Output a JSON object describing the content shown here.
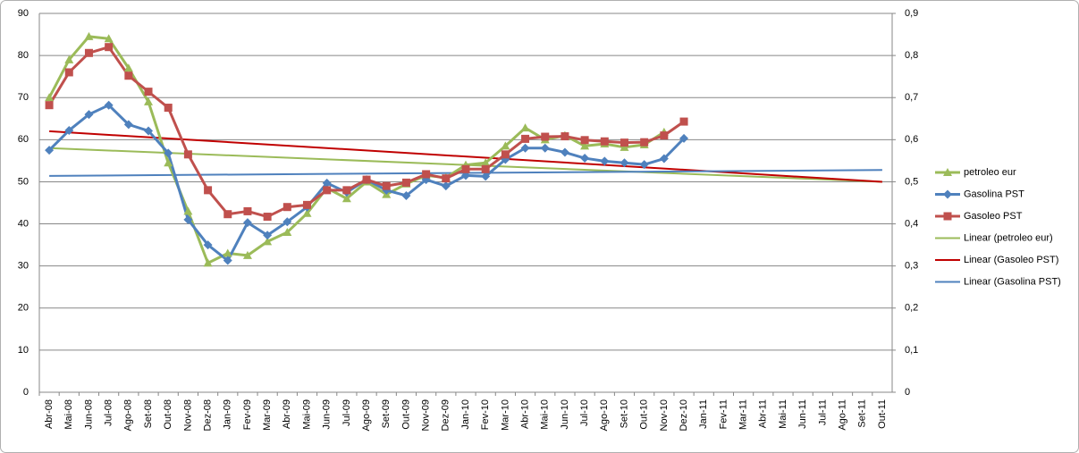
{
  "chart_data": {
    "type": "line",
    "categories": [
      "Abr-08",
      "Mai-08",
      "Jun-08",
      "Jul-08",
      "Ago-08",
      "Set-08",
      "Out-08",
      "Nov-08",
      "Dez-08",
      "Jan-09",
      "Fev-09",
      "Mar-09",
      "Abr-09",
      "Mai-09",
      "Jun-09",
      "Jul-09",
      "Ago-09",
      "Set-09",
      "Out-09",
      "Nov-09",
      "Dez-09",
      "Jan-10",
      "Fev-10",
      "Mar-10",
      "Abr-10",
      "Mai-10",
      "Jun-10",
      "Jul-10",
      "Ago-10",
      "Set-10",
      "Out-10",
      "Nov-10",
      "Dez-10",
      "Jan-11",
      "Fev-11",
      "Mar-11",
      "Abr-11",
      "Mai-11",
      "Jun-11",
      "Jul-11",
      "Ago-11",
      "Set-11",
      "Out-11"
    ],
    "series": [
      {
        "name": "petroleo eur",
        "color": "#9bbb59",
        "marker": "triangle",
        "axis": "y",
        "values": [
          70,
          79,
          84.5,
          84,
          77,
          69,
          54.5,
          43,
          30.7,
          33,
          32.5,
          35.8,
          38,
          42.5,
          48.5,
          46,
          50,
          47,
          49.5,
          51.5,
          51,
          54,
          54.5,
          58.5,
          62.8,
          60,
          61,
          58.5,
          59,
          58.2,
          58.8,
          61.8,
          null,
          null,
          null,
          null,
          null,
          null,
          null,
          null,
          null,
          null,
          null
        ]
      },
      {
        "name": "Gasolina PST",
        "color": "#4f81bd",
        "marker": "diamond",
        "axis": "y2",
        "values": [
          0.575,
          0.622,
          0.66,
          0.682,
          0.636,
          0.621,
          0.568,
          0.41,
          0.35,
          0.313,
          0.403,
          0.373,
          0.405,
          0.44,
          0.497,
          0.475,
          0.505,
          0.48,
          0.467,
          0.505,
          0.49,
          0.515,
          0.513,
          0.553,
          0.58,
          0.58,
          0.57,
          0.556,
          0.549,
          0.545,
          0.541,
          0.555,
          0.603,
          null,
          null,
          null,
          null,
          null,
          null,
          null,
          null,
          null,
          null
        ]
      },
      {
        "name": "Gasoleo PST",
        "color": "#c0504d",
        "marker": "square",
        "axis": "y2",
        "values": [
          0.682,
          0.76,
          0.806,
          0.82,
          0.752,
          0.714,
          0.676,
          0.565,
          0.48,
          0.423,
          0.43,
          0.417,
          0.44,
          0.445,
          0.48,
          0.48,
          0.505,
          0.49,
          0.498,
          0.518,
          0.508,
          0.53,
          0.53,
          0.565,
          0.602,
          0.607,
          0.608,
          0.599,
          0.596,
          0.593,
          0.594,
          0.61,
          0.643,
          null,
          null,
          null,
          null,
          null,
          null,
          null,
          null,
          null,
          null
        ]
      }
    ],
    "trendlines": [
      {
        "name": "Linear (petroleo eur)",
        "color": "#9bbb59",
        "axis": "y",
        "from": 58,
        "to": 50
      },
      {
        "name": "Linear (Gasoleo PST)",
        "color": "#c00000",
        "axis": "y2",
        "from": 0.62,
        "to": 0.5
      },
      {
        "name": "Linear (Gasolina PST)",
        "color": "#4f81bd",
        "axis": "y2",
        "from": 0.514,
        "to": 0.528
      }
    ],
    "ylim": [
      0,
      90
    ],
    "yticks": [
      0,
      10,
      20,
      30,
      40,
      50,
      60,
      70,
      80,
      90
    ],
    "y2lim": [
      0,
      0.9
    ],
    "y2ticks": [
      0,
      {
        "value": 0.1,
        "label": "0,1"
      },
      {
        "value": 0.2,
        "label": "0,2"
      },
      {
        "value": 0.3,
        "label": "0,3"
      },
      {
        "value": 0.4,
        "label": "0,4"
      },
      {
        "value": 0.5,
        "label": "0,5"
      },
      {
        "value": 0.6,
        "label": "0,6"
      },
      {
        "value": 0.7,
        "label": "0,7"
      },
      {
        "value": 0.8,
        "label": "0,8"
      },
      {
        "value": 0.9,
        "label": "0,9"
      }
    ],
    "grid": true,
    "legend": "right"
  }
}
